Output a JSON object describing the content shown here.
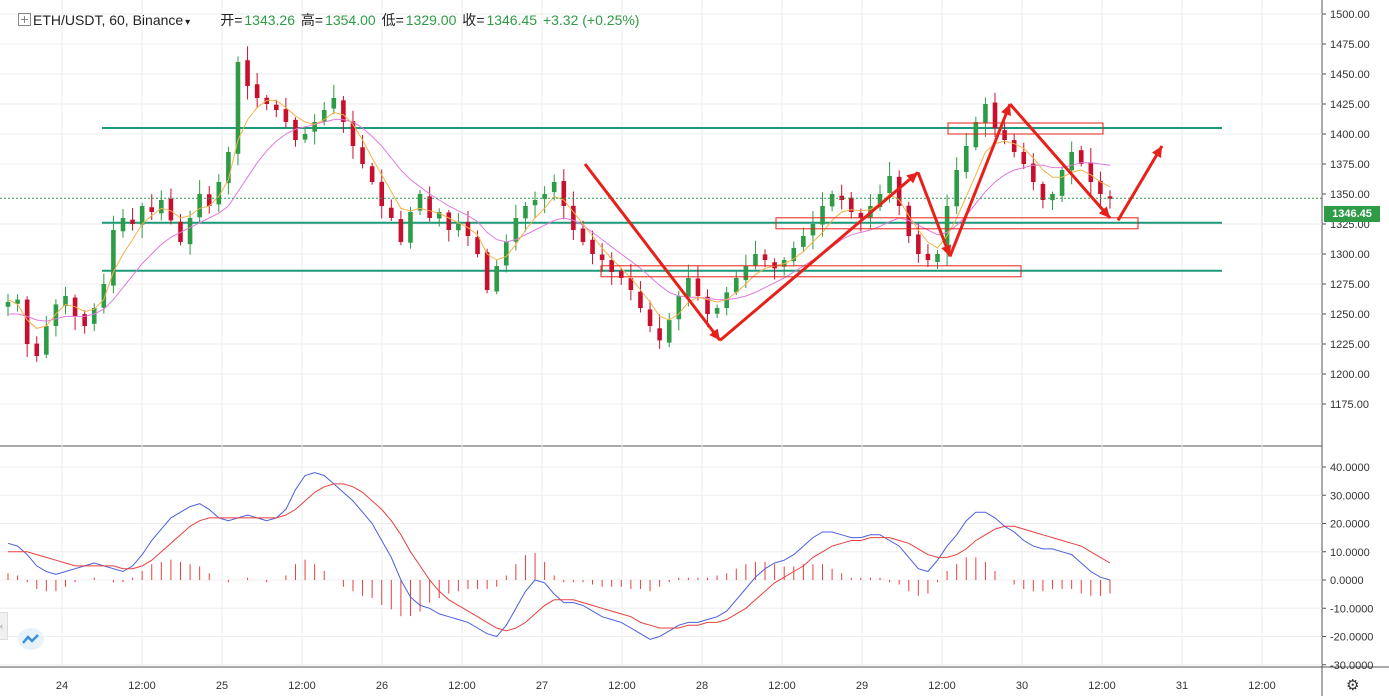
{
  "header": {
    "symbol": "ETH/USDT, 60, Binance",
    "open_label": "开=",
    "open": "1343.26",
    "high_label": "高=",
    "high": "1354.00",
    "low_label": "低=",
    "low": "1329.00",
    "close_label": "收=",
    "close": "1346.45",
    "change": "+3.32 (+0.25%)"
  },
  "last_price_tag": "1346.45",
  "colors": {
    "up": "#2e9b46",
    "down": "#c8102e",
    "level_line": "#1a9a7a",
    "macd_dif": "#4c5fe0",
    "macd_dea": "#e84040",
    "ma_short": "#f2b24a",
    "ma_long": "#e17ae0",
    "annotation": "#e8201a"
  },
  "chart_data": [
    {
      "type": "candlestick",
      "title": "ETH/USDT, 60, Binance",
      "y_ticks": [
        "1500.00",
        "1475.00",
        "1450.00",
        "1425.00",
        "1400.00",
        "1375.00",
        "1350.00",
        "1325.00",
        "1300.00",
        "1275.00",
        "1250.00",
        "1225.00",
        "1200.00",
        "1175.00"
      ],
      "ylim": [
        1170,
        1505
      ],
      "x_ticks": [
        "24",
        "12:00",
        "25",
        "12:00",
        "26",
        "12:00",
        "27",
        "12:00",
        "28",
        "12:00",
        "29",
        "12:00",
        "30",
        "12:00",
        "31",
        "12:00"
      ],
      "last_price": 1346.45,
      "horizontal_levels": [
        1405,
        1326,
        1286
      ],
      "price_path": [
        1260,
        1262,
        1225,
        1215,
        1240,
        1258,
        1265,
        1248,
        1240,
        1255,
        1275,
        1320,
        1330,
        1325,
        1340,
        1335,
        1345,
        1328,
        1310,
        1330,
        1350,
        1340,
        1360,
        1385,
        1460,
        1440,
        1430,
        1425,
        1420,
        1410,
        1395,
        1400,
        1410,
        1420,
        1430,
        1410,
        1390,
        1375,
        1360,
        1340,
        1330,
        1310,
        1335,
        1350,
        1330,
        1335,
        1320,
        1325,
        1315,
        1300,
        1270,
        1290,
        1310,
        1330,
        1340,
        1345,
        1350,
        1360,
        1340,
        1320,
        1310,
        1300,
        1295,
        1285,
        1280,
        1270,
        1255,
        1240,
        1228,
        1245,
        1265,
        1280,
        1265,
        1250,
        1255,
        1268,
        1280,
        1290,
        1300,
        1295,
        1288,
        1295,
        1305,
        1315,
        1325,
        1340,
        1350,
        1345,
        1335,
        1330,
        1340,
        1350,
        1365,
        1340,
        1315,
        1300,
        1295,
        1300,
        1340,
        1370,
        1390,
        1410,
        1425,
        1405,
        1395,
        1385,
        1375,
        1360,
        1345,
        1350,
        1370,
        1385,
        1375,
        1360,
        1350,
        1346
      ],
      "ma_short": [
        1262,
        1258,
        1245,
        1238,
        1240,
        1250,
        1258,
        1256,
        1252,
        1254,
        1262,
        1285,
        1300,
        1312,
        1325,
        1332,
        1338,
        1336,
        1330,
        1332,
        1338,
        1340,
        1348,
        1362,
        1395,
        1412,
        1422,
        1428,
        1428,
        1422,
        1415,
        1410,
        1408,
        1412,
        1418,
        1416,
        1408,
        1395,
        1380,
        1366,
        1352,
        1338,
        1336,
        1338,
        1336,
        1334,
        1330,
        1326,
        1322,
        1316,
        1300,
        1295,
        1298,
        1308,
        1320,
        1330,
        1338,
        1348,
        1345,
        1335,
        1325,
        1315,
        1305,
        1296,
        1288,
        1280,
        1270,
        1260,
        1248,
        1245,
        1250,
        1260,
        1264,
        1262,
        1260,
        1262,
        1268,
        1275,
        1283,
        1288,
        1290,
        1292,
        1296,
        1302,
        1310,
        1318,
        1328,
        1335,
        1337,
        1336,
        1337,
        1342,
        1350,
        1345,
        1332,
        1320,
        1310,
        1305,
        1315,
        1330,
        1348,
        1366,
        1385,
        1392,
        1394,
        1392,
        1388,
        1380,
        1370,
        1364,
        1364,
        1368,
        1370,
        1366,
        1360,
        1356
      ],
      "ma_long": [
        1250,
        1250,
        1248,
        1245,
        1244,
        1246,
        1248,
        1248,
        1248,
        1250,
        1254,
        1262,
        1272,
        1282,
        1292,
        1300,
        1308,
        1314,
        1318,
        1322,
        1326,
        1330,
        1334,
        1340,
        1352,
        1364,
        1376,
        1386,
        1394,
        1400,
        1404,
        1406,
        1408,
        1410,
        1412,
        1412,
        1410,
        1405,
        1398,
        1390,
        1380,
        1370,
        1362,
        1356,
        1350,
        1345,
        1340,
        1336,
        1332,
        1327,
        1318,
        1312,
        1310,
        1312,
        1316,
        1320,
        1324,
        1328,
        1330,
        1328,
        1324,
        1318,
        1312,
        1306,
        1300,
        1294,
        1288,
        1281,
        1274,
        1268,
        1265,
        1264,
        1264,
        1263,
        1262,
        1262,
        1263,
        1265,
        1268,
        1272,
        1276,
        1280,
        1285,
        1290,
        1295,
        1300,
        1306,
        1312,
        1316,
        1318,
        1320,
        1323,
        1327,
        1330,
        1328,
        1324,
        1320,
        1316,
        1318,
        1324,
        1332,
        1342,
        1352,
        1360,
        1366,
        1370,
        1372,
        1374,
        1374,
        1372,
        1372,
        1374,
        1376,
        1376,
        1375,
        1374
      ]
    },
    {
      "type": "line",
      "title": "",
      "y_ticks": [
        "40.0000",
        "30.0000",
        "20.0000",
        "10.0000",
        "0.0000",
        "-10.0000",
        "-20.0000",
        "-30.0000"
      ],
      "ylim": [
        -32,
        43
      ],
      "series": [
        {
          "values": [
            13,
            12,
            9,
            5,
            3,
            2,
            3,
            4,
            5,
            6,
            5,
            4,
            3,
            5,
            9,
            14,
            18,
            22,
            24,
            26,
            27,
            25,
            22,
            21,
            22,
            23,
            22,
            21,
            22,
            25,
            32,
            37,
            38,
            37,
            34,
            31,
            28,
            24,
            20,
            14,
            8,
            0,
            -6,
            -9,
            -10,
            -12,
            -13,
            -14,
            -15,
            -17,
            -19,
            -20,
            -16,
            -10,
            -4,
            0,
            -1,
            -5,
            -8,
            -8,
            -9,
            -11,
            -13,
            -14,
            -15,
            -17,
            -19,
            -21,
            -20,
            -18,
            -16,
            -15,
            -15,
            -14,
            -13,
            -11,
            -7,
            -3,
            1,
            4,
            6,
            7,
            9,
            12,
            15,
            17,
            17,
            16,
            15,
            15,
            16,
            16,
            14,
            12,
            8,
            4,
            3,
            7,
            12,
            16,
            21,
            24,
            24,
            22,
            19,
            17,
            14,
            12,
            11,
            11,
            10,
            9,
            6,
            3,
            1,
            0
          ]
        },
        {
          "values": [
            10,
            10,
            10,
            9,
            8,
            7,
            6,
            5,
            5,
            5,
            5,
            5,
            4,
            4,
            5,
            7,
            10,
            13,
            16,
            19,
            21,
            22,
            22,
            22,
            22,
            22,
            22,
            22,
            22,
            23,
            25,
            28,
            31,
            33,
            34,
            34,
            33,
            31,
            28,
            25,
            21,
            16,
            10,
            5,
            0,
            -4,
            -7,
            -9,
            -11,
            -13,
            -15,
            -17,
            -18,
            -17,
            -15,
            -12,
            -9,
            -7,
            -7,
            -7,
            -8,
            -9,
            -10,
            -11,
            -12,
            -13,
            -15,
            -16,
            -17,
            -17,
            -17,
            -16,
            -16,
            -15,
            -15,
            -14,
            -12,
            -10,
            -7,
            -4,
            -1,
            1,
            3,
            5,
            8,
            10,
            12,
            13,
            14,
            14,
            15,
            15,
            15,
            14,
            13,
            11,
            9,
            8,
            8,
            9,
            11,
            14,
            16,
            18,
            19,
            19,
            18,
            17,
            16,
            15,
            14,
            13,
            12,
            10,
            8,
            6
          ]
        }
      ]
    }
  ]
}
